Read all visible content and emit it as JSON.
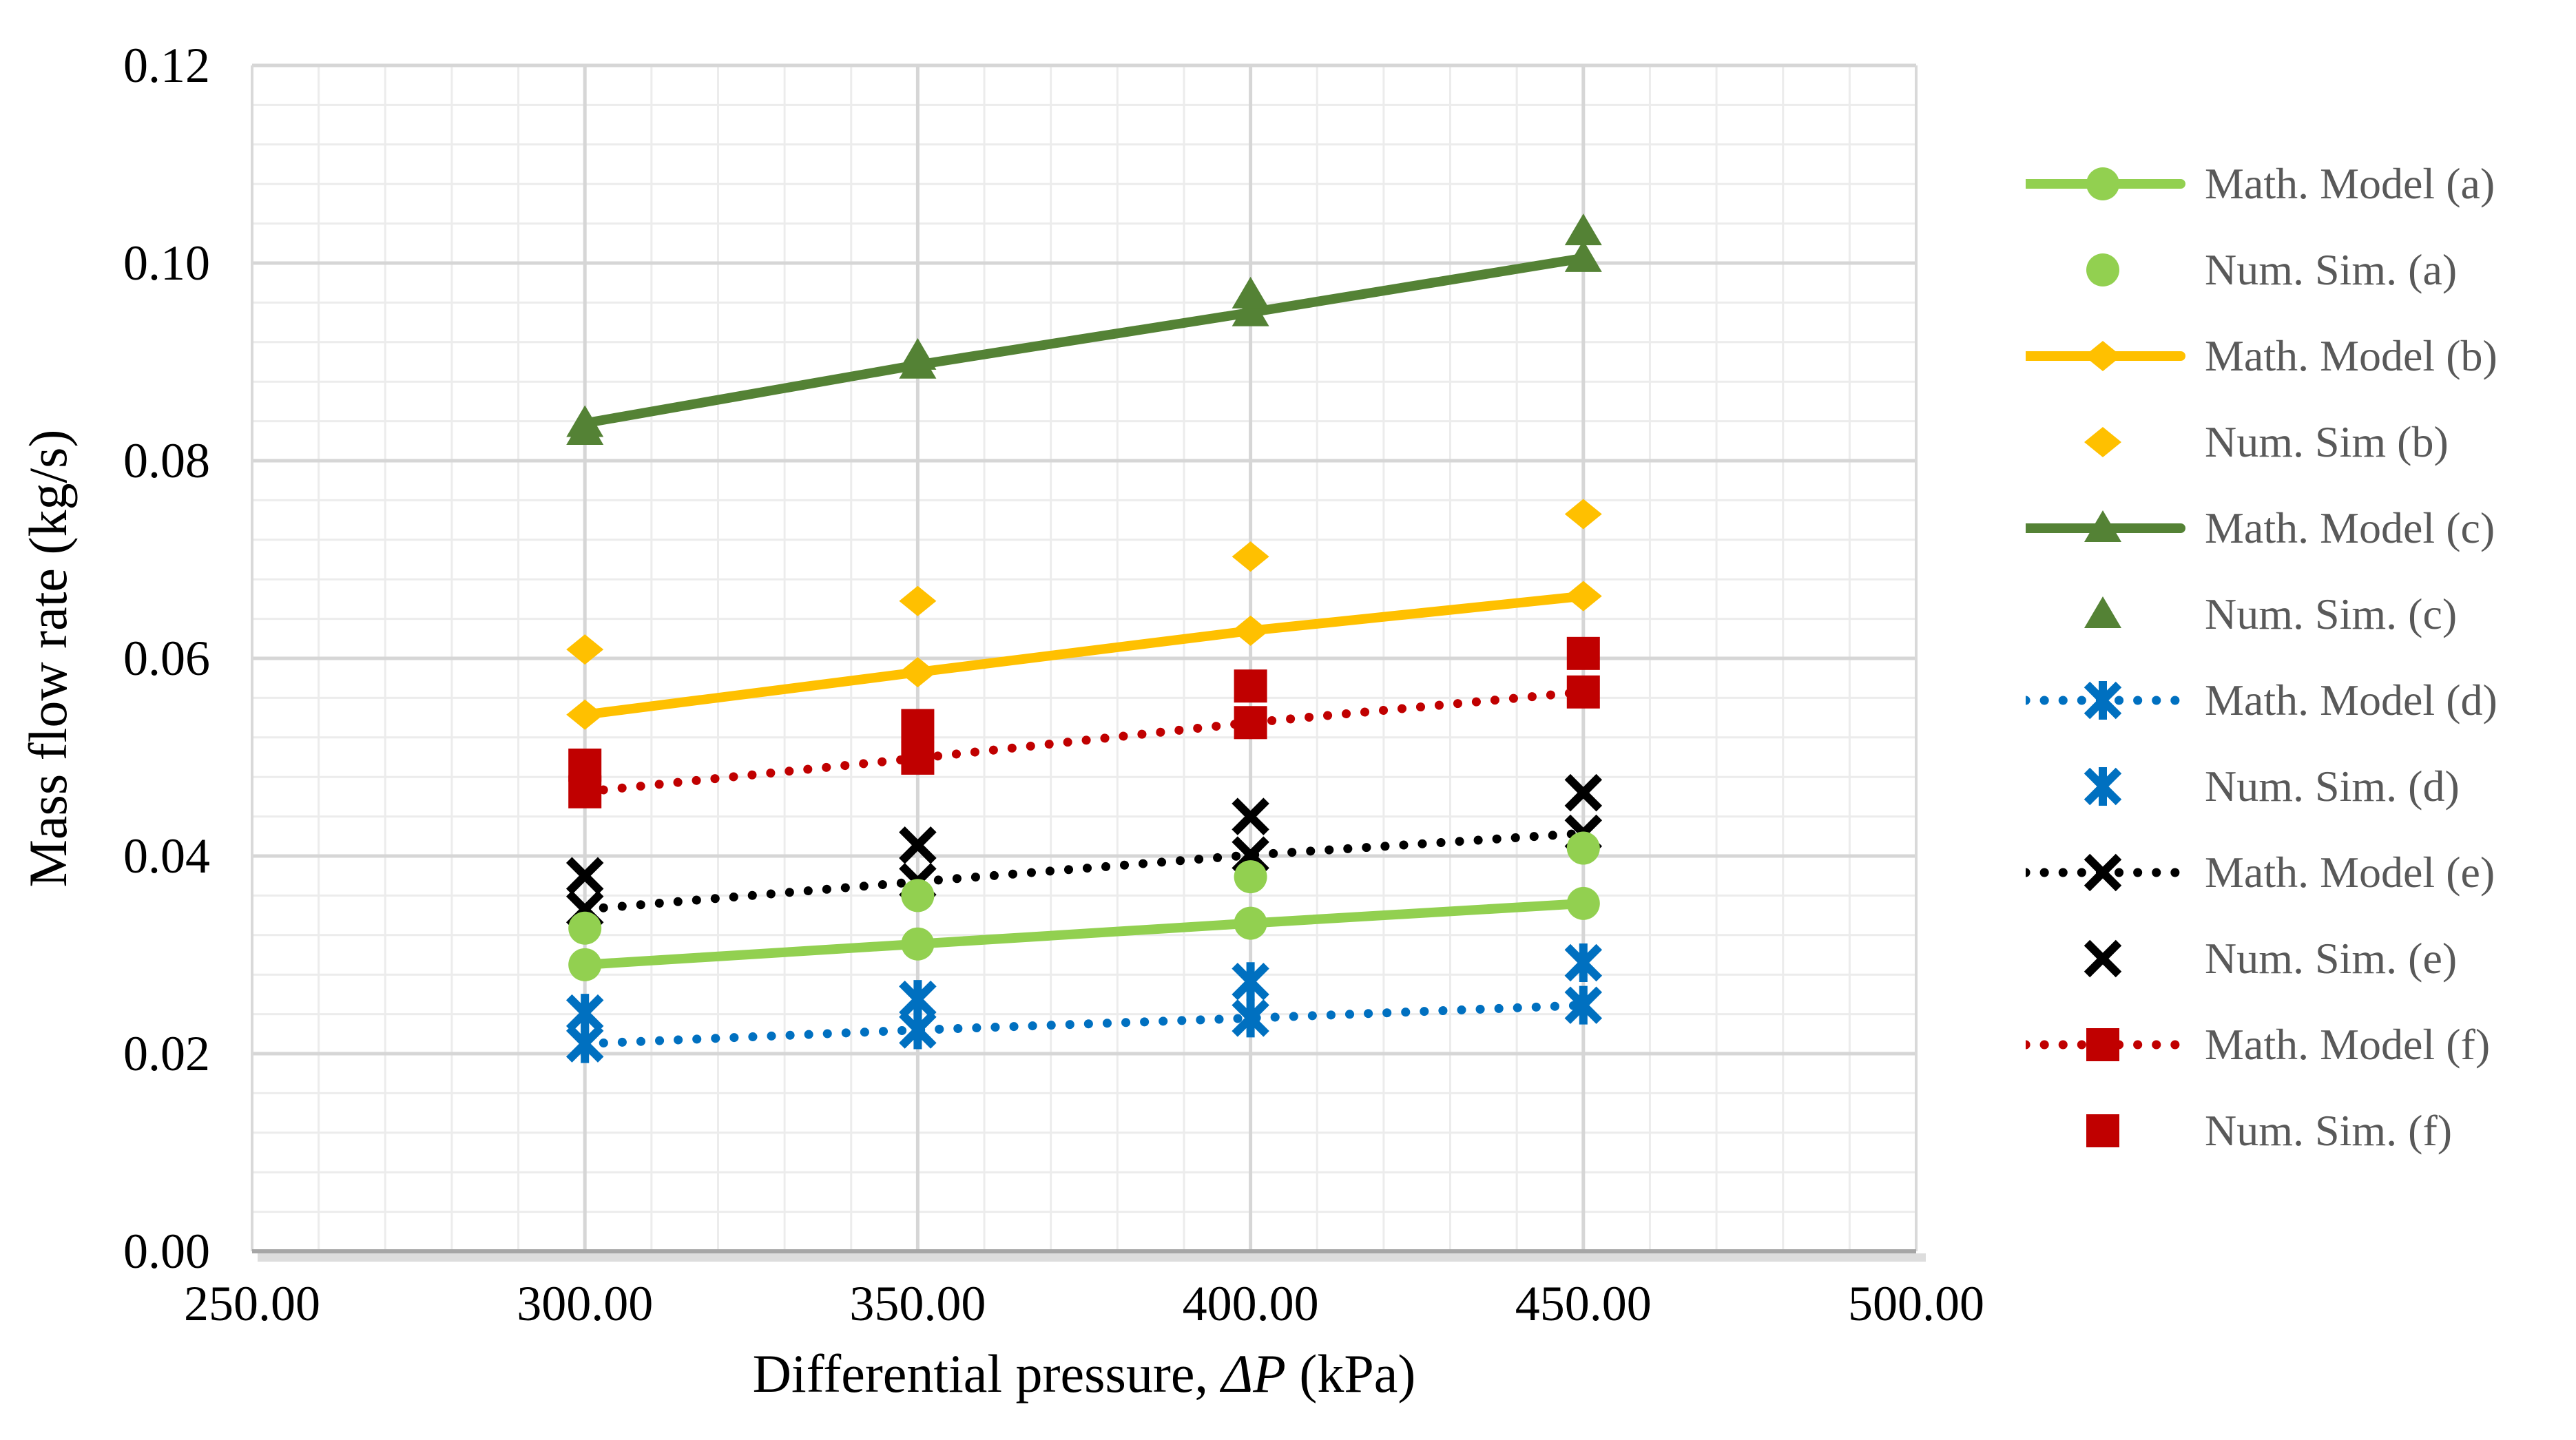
{
  "chart_data": {
    "type": "line",
    "title": "",
    "xlabel": "Differential pressure, ΔP (kPa)",
    "xlabel_parts": {
      "prefix": "Differential pressure, ",
      "italic": "ΔP",
      "suffix": " (kPa)"
    },
    "ylabel": "Mass flow rate (kg/s)",
    "xlim": [
      250,
      500
    ],
    "ylim": [
      0,
      0.12
    ],
    "x_tick_values": [
      250,
      300,
      350,
      400,
      450,
      500
    ],
    "x_tick_labels": [
      "250.00",
      "300.00",
      "350.00",
      "400.00",
      "450.00",
      "500.00"
    ],
    "y_tick_values": [
      0,
      0.02,
      0.04,
      0.06,
      0.08,
      0.1,
      0.12
    ],
    "y_tick_labels": [
      "0.00",
      "0.02",
      "0.04",
      "0.06",
      "0.08",
      "0.10",
      "0.12"
    ],
    "x_minor_step": 10,
    "y_minor_step": 0.004,
    "grid": true,
    "legend_position": "right",
    "x": [
      300,
      350,
      400,
      450
    ],
    "series": [
      {
        "name": "Math. Model (a)",
        "kind": "line",
        "dash": "solid",
        "marker": "circle",
        "color": "#92D050",
        "values": [
          0.029,
          0.0311,
          0.0332,
          0.0352
        ]
      },
      {
        "name": "Num. Sim. (a)",
        "kind": "scatter",
        "dash": "none",
        "marker": "circle",
        "color": "#92D050",
        "values": [
          0.0327,
          0.036,
          0.0379,
          0.0408
        ]
      },
      {
        "name": "Math. Model (b)",
        "kind": "line",
        "dash": "solid",
        "marker": "diamond",
        "color": "#FFC000",
        "values": [
          0.0543,
          0.0586,
          0.0628,
          0.0663
        ]
      },
      {
        "name": "Num. Sim (b)",
        "kind": "scatter",
        "dash": "none",
        "marker": "diamond",
        "color": "#FFC000",
        "values": [
          0.0609,
          0.0658,
          0.0703,
          0.0746
        ]
      },
      {
        "name": "Math. Model (c)",
        "kind": "line",
        "dash": "solid",
        "marker": "triangle",
        "color": "#548235",
        "values": [
          0.0838,
          0.0897,
          0.095,
          0.1005
        ]
      },
      {
        "name": "Num. Sim. (c)",
        "kind": "scatter",
        "dash": "none",
        "marker": "triangle",
        "color": "#548235",
        "values": [
          0.083,
          0.0906,
          0.0968,
          0.1032
        ]
      },
      {
        "name": "Math. Model (d)",
        "kind": "line",
        "dash": "dot",
        "marker": "asterisk",
        "color": "#0070C0",
        "values": [
          0.021,
          0.0224,
          0.0236,
          0.0249
        ]
      },
      {
        "name": "Num. Sim. (d)",
        "kind": "scatter",
        "dash": "none",
        "marker": "asterisk",
        "color": "#0070C0",
        "values": [
          0.0241,
          0.0255,
          0.0273,
          0.0292
        ]
      },
      {
        "name": "Math. Model (e)",
        "kind": "line",
        "dash": "dot",
        "marker": "x",
        "color": "#000000",
        "values": [
          0.0346,
          0.0374,
          0.0401,
          0.0423
        ]
      },
      {
        "name": "Num. Sim. (e)",
        "kind": "scatter",
        "dash": "none",
        "marker": "x",
        "color": "#000000",
        "values": [
          0.038,
          0.0411,
          0.044,
          0.0464
        ]
      },
      {
        "name": "Math. Model (f)",
        "kind": "line",
        "dash": "dot",
        "marker": "square",
        "color": "#C00000",
        "values": [
          0.0465,
          0.0499,
          0.0535,
          0.0566
        ]
      },
      {
        "name": "Num. Sim. (f)",
        "kind": "scatter",
        "dash": "none",
        "marker": "square",
        "color": "#C00000",
        "values": [
          0.0492,
          0.0532,
          0.0572,
          0.0605
        ]
      }
    ],
    "colors": {
      "background": "#FFFFFF",
      "grid_minor": "#ECECEC",
      "grid_major": "#D6D6D6",
      "plot_border": "#D9D9D9",
      "axis_line": "#A6A6A6",
      "axis_shadow": "#DDDDDD",
      "tick_text": "#000000",
      "legend_text": "#595959"
    }
  }
}
